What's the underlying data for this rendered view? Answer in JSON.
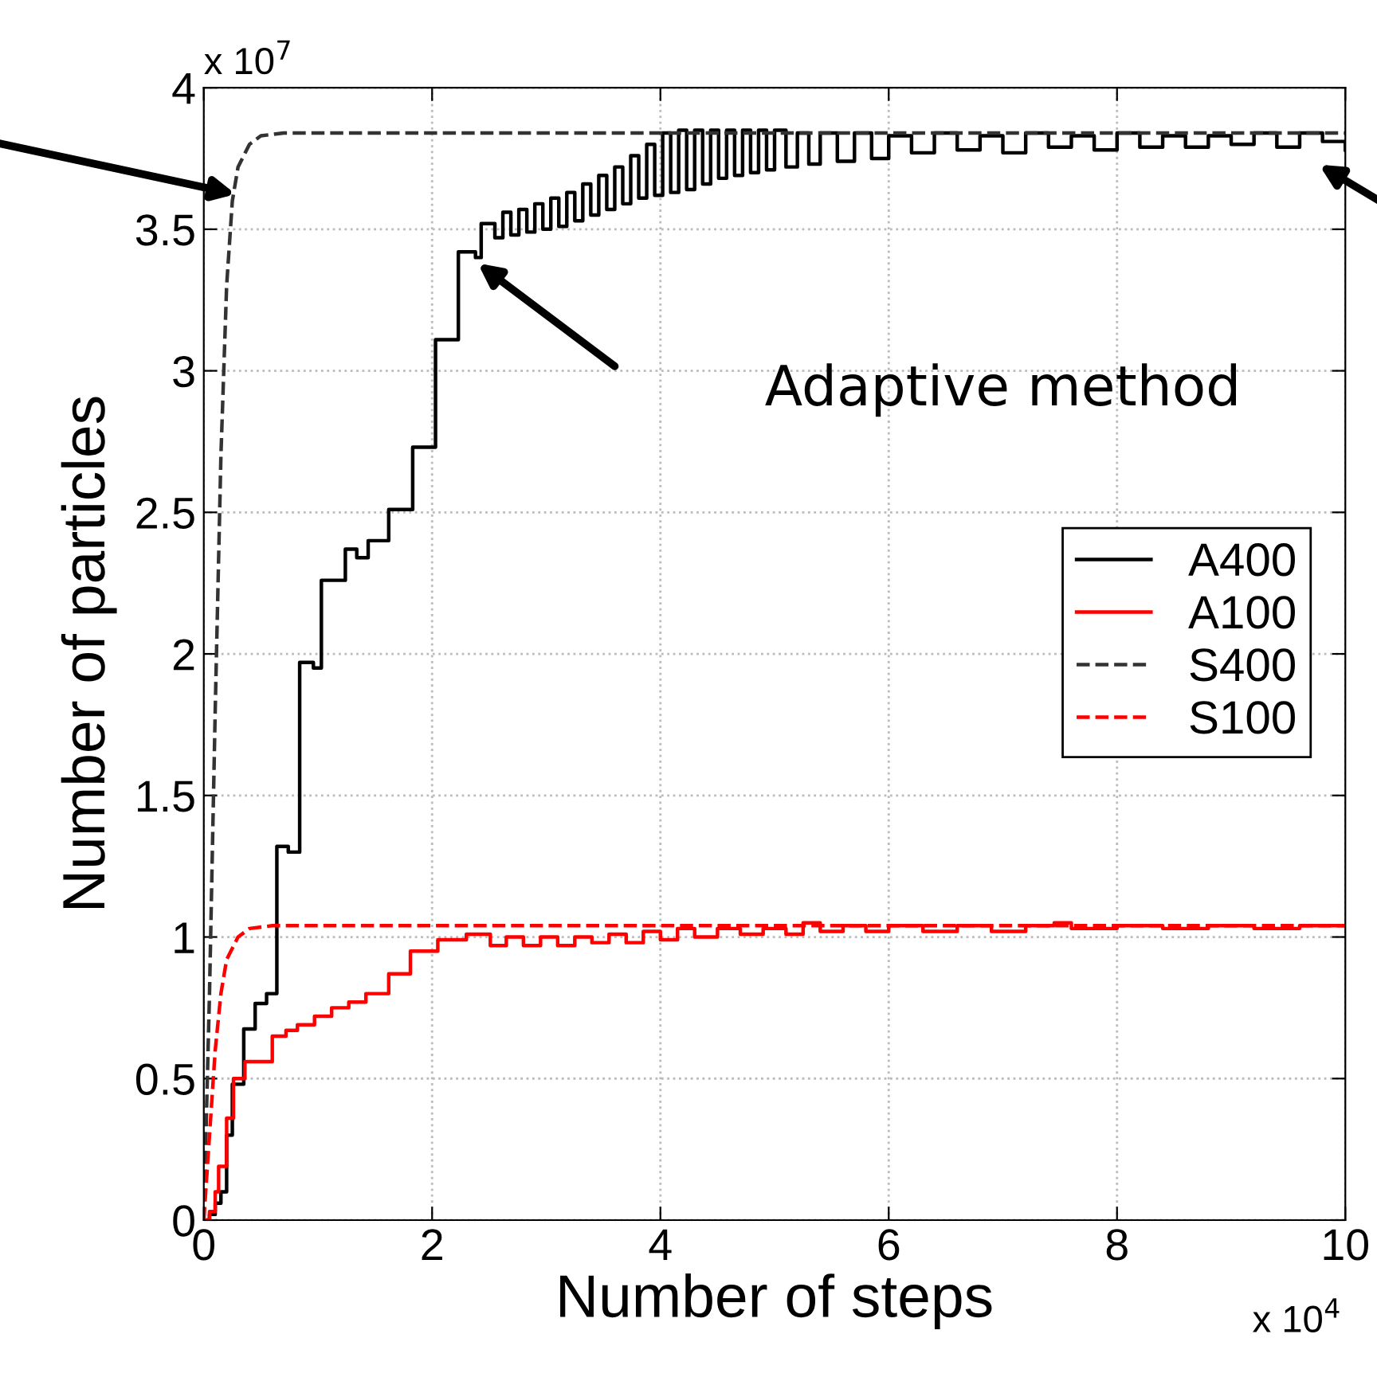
{
  "chart_data": {
    "type": "step",
    "xlabel": "Number of steps",
    "ylabel": "Number of particles",
    "xlim": [
      0,
      10
    ],
    "xticks": [
      0,
      2,
      4,
      6,
      8,
      10
    ],
    "ylim": [
      0,
      4
    ],
    "yticks": [
      0,
      0.5,
      1,
      1.5,
      2,
      2.5,
      3,
      3.5,
      4
    ],
    "grid": true,
    "legend": "right",
    "annotations": [
      "x 10$^{7}$",
      "x 10$^{4}$",
      "Adaptive method"
    ],
    "series": [
      {
        "name": "A400",
        "color": "#000000",
        "line_style": "solid",
        "x": [
          0,
          0.05,
          0.1,
          0.15,
          0.2,
          0.25,
          0.35,
          0.45,
          0.55,
          0.64,
          0.74,
          0.84,
          0.96,
          1.03,
          1.24,
          1.34,
          1.44,
          1.62,
          1.83,
          2.03,
          2.23,
          2.38,
          2.43,
          2.55,
          2.62,
          2.69,
          2.76,
          2.83,
          2.9,
          2.97,
          3.04,
          3.11,
          3.18,
          3.25,
          3.32,
          3.39,
          3.46,
          3.53,
          3.6,
          3.67,
          3.74,
          3.81,
          3.88,
          3.95,
          4.02,
          4.09,
          4.16,
          4.23,
          4.3,
          4.37,
          4.44,
          4.51,
          4.58,
          4.65,
          4.72,
          4.79,
          4.86,
          4.93,
          5.0,
          5.1,
          5.2,
          5.3,
          5.4,
          5.55,
          5.7,
          5.85,
          6.0,
          6.2,
          6.4,
          6.6,
          6.8,
          7.0,
          7.2,
          7.4,
          7.6,
          7.8,
          8.0,
          8.2,
          8.4,
          8.6,
          8.8,
          9.0,
          9.2,
          9.4,
          9.6,
          9.8,
          10
        ],
        "values": [
          0,
          0.02,
          0.06,
          0.1,
          0.3,
          0.48,
          0.675,
          0.765,
          0.8,
          1.32,
          1.3,
          1.97,
          1.95,
          2.26,
          2.37,
          2.34,
          2.4,
          2.51,
          2.73,
          3.11,
          3.42,
          3.4,
          3.52,
          3.47,
          3.56,
          3.48,
          3.57,
          3.49,
          3.59,
          3.5,
          3.61,
          3.51,
          3.63,
          3.53,
          3.66,
          3.55,
          3.69,
          3.57,
          3.72,
          3.59,
          3.76,
          3.61,
          3.8,
          3.62,
          3.84,
          3.63,
          3.85,
          3.64,
          3.85,
          3.66,
          3.85,
          3.68,
          3.85,
          3.69,
          3.85,
          3.7,
          3.85,
          3.71,
          3.85,
          3.72,
          3.84,
          3.73,
          3.84,
          3.74,
          3.84,
          3.75,
          3.83,
          3.77,
          3.84,
          3.78,
          3.83,
          3.77,
          3.84,
          3.79,
          3.83,
          3.78,
          3.84,
          3.79,
          3.83,
          3.79,
          3.83,
          3.8,
          3.84,
          3.79,
          3.84,
          3.81,
          3.78
        ]
      },
      {
        "name": "A100",
        "color": "#ff0000",
        "line_style": "solid",
        "x": [
          0,
          0.05,
          0.1,
          0.13,
          0.2,
          0.26,
          0.36,
          0.6,
          0.72,
          0.82,
          0.97,
          1.12,
          1.27,
          1.42,
          1.62,
          1.81,
          2.05,
          2.3,
          2.51,
          2.65,
          2.8,
          2.95,
          3.1,
          3.25,
          3.4,
          3.55,
          3.7,
          3.85,
          4.0,
          4.15,
          4.3,
          4.5,
          4.7,
          4.9,
          5.1,
          5.25,
          5.4,
          5.6,
          5.8,
          6.0,
          6.3,
          6.6,
          6.9,
          7.2,
          7.45,
          7.6,
          8.0,
          8.4,
          8.8,
          9.2,
          9.6,
          10
        ],
        "values": [
          0,
          0.03,
          0.1,
          0.19,
          0.36,
          0.5,
          0.56,
          0.65,
          0.67,
          0.69,
          0.72,
          0.75,
          0.77,
          0.8,
          0.87,
          0.95,
          0.99,
          1.01,
          0.97,
          1.0,
          0.97,
          1.0,
          0.97,
          1.0,
          0.98,
          1.01,
          0.98,
          1.02,
          0.99,
          1.03,
          1.0,
          1.03,
          1.01,
          1.03,
          1.01,
          1.05,
          1.02,
          1.04,
          1.02,
          1.04,
          1.02,
          1.04,
          1.02,
          1.04,
          1.05,
          1.03,
          1.04,
          1.03,
          1.04,
          1.03,
          1.04,
          1.04
        ]
      },
      {
        "name": "S400",
        "color": "#333333",
        "type": "line",
        "line_style": "dashed",
        "x": [
          0,
          0.05,
          0.1,
          0.15,
          0.2,
          0.25,
          0.3,
          0.4,
          0.5,
          0.7,
          10
        ],
        "values": [
          0,
          0.8,
          1.8,
          2.7,
          3.3,
          3.6,
          3.72,
          3.8,
          3.83,
          3.84,
          3.84
        ]
      },
      {
        "name": "S100",
        "color": "#ff0000",
        "type": "line",
        "line_style": "dashed",
        "x": [
          0,
          0.05,
          0.1,
          0.15,
          0.2,
          0.3,
          0.4,
          0.6,
          10
        ],
        "values": [
          0,
          0.3,
          0.6,
          0.8,
          0.92,
          1.0,
          1.03,
          1.04,
          1.04
        ]
      }
    ]
  }
}
